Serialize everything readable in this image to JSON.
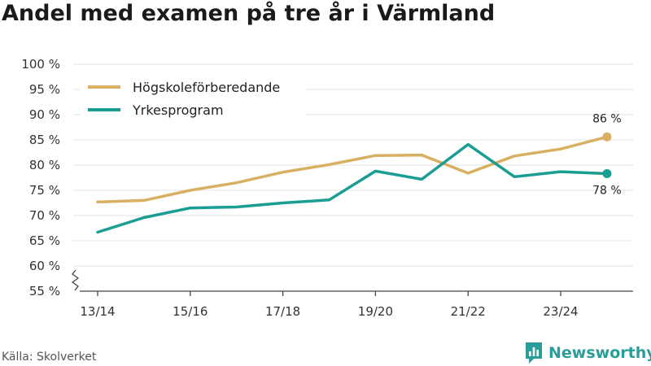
{
  "chart_data": {
    "type": "line",
    "title": "Andel med examen på tre år i Värmland",
    "xlabel": "",
    "ylabel": "",
    "x": [
      "13/14",
      "14/15",
      "15/16",
      "16/17",
      "17/18",
      "18/19",
      "19/20",
      "20/21",
      "21/22",
      "22/23",
      "23/24",
      "24/25"
    ],
    "x_tick_labels": [
      "13/14",
      "15/16",
      "17/18",
      "19/20",
      "21/22",
      "23/24"
    ],
    "ylim": [
      55,
      100
    ],
    "y_ticks": [
      55,
      60,
      65,
      70,
      75,
      80,
      85,
      90,
      95,
      100
    ],
    "y_tick_labels": [
      "55 %",
      "60 %",
      "65 %",
      "70 %",
      "75 %",
      "80 %",
      "85 %",
      "90 %",
      "95 %",
      "100 %"
    ],
    "grid": true,
    "legend_position": "top-left",
    "series": [
      {
        "name": "Högskoleförberedande",
        "color": "#d9b062",
        "values": [
          72.7,
          73.0,
          75.0,
          76.5,
          78.6,
          80.1,
          81.9,
          82.0,
          78.4,
          81.8,
          83.2,
          85.6
        ],
        "end_label": "86 %"
      },
      {
        "name": "Yrkesprogram",
        "color": "#1a9e94",
        "values": [
          66.7,
          69.6,
          71.5,
          71.7,
          72.5,
          73.1,
          78.8,
          77.2,
          84.1,
          77.7,
          78.7,
          78.3
        ],
        "end_label": "78 %"
      }
    ]
  },
  "footer": {
    "source": "Källa: Skolverket",
    "brand": "Newsworthy"
  }
}
